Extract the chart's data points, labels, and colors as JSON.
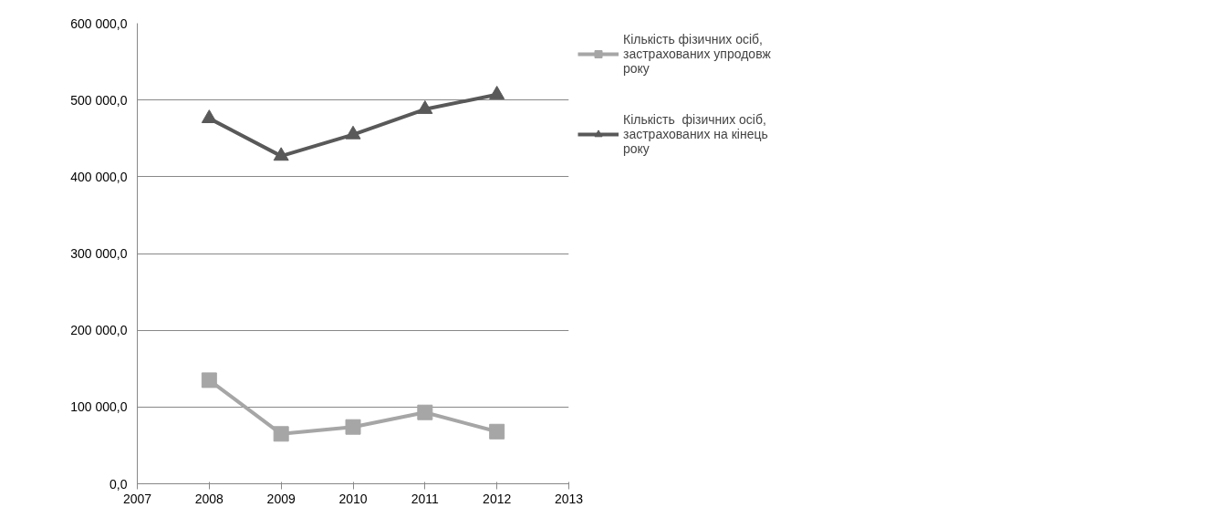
{
  "chart_data": {
    "type": "line",
    "x": [
      2008,
      2009,
      2010,
      2011,
      2012
    ],
    "series": [
      {
        "name": "Кількість фізичних осіб, застрахованих упродовж року",
        "color": "#a6a6a6",
        "marker": "square",
        "values": [
          135000,
          65000,
          74000,
          93000,
          68000
        ]
      },
      {
        "name": "Кількість  фізичних осіб, застрахованих на кінець року",
        "color": "#595959",
        "marker": "triangle",
        "values": [
          476000,
          427000,
          455000,
          488000,
          507000
        ]
      }
    ],
    "xlim": [
      2007,
      2013
    ],
    "xticks": [
      2007,
      2008,
      2009,
      2010,
      2011,
      2012,
      2013
    ],
    "ylim": [
      0,
      600000
    ],
    "yticks": [
      {
        "value": 0,
        "label": "0,0"
      },
      {
        "value": 100000,
        "label": "100 000,0"
      },
      {
        "value": 200000,
        "label": "200 000,0"
      },
      {
        "value": 300000,
        "label": "300 000,0"
      },
      {
        "value": 400000,
        "label": "400 000,0"
      },
      {
        "value": 500000,
        "label": "500 000,0"
      },
      {
        "value": 600000,
        "label": "600 000,0"
      }
    ],
    "grid": "y",
    "legend": "right",
    "line_style": "solid"
  }
}
